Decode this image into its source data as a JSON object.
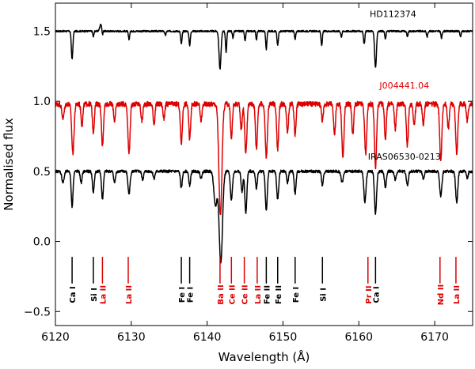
{
  "chart_data": {
    "type": "line",
    "xlabel": "Wavelength (Å)",
    "ylabel": "Normalised flux",
    "xlim": [
      6120,
      6175
    ],
    "ylim": [
      -0.6,
      1.7
    ],
    "xticks": [
      6120,
      6130,
      6140,
      6150,
      6160,
      6170
    ],
    "yticks": [
      -0.5,
      0.0,
      0.5,
      1.0,
      1.5
    ],
    "ytick_labels": [
      "−0.5",
      "0.0",
      "0.5",
      "1.0",
      "1.5"
    ],
    "grid": false,
    "series": [
      {
        "name": "HD112374",
        "color": "#000000",
        "continuum": 1.5,
        "noise": 0.006,
        "label_x": 6164.5,
        "label_y": 1.6,
        "emission": [
          [
            6126.0,
            0.05,
            0.15
          ]
        ],
        "lines": [
          [
            6122.2,
            0.2,
            0.1
          ],
          [
            6125.0,
            0.04,
            0.07
          ],
          [
            6126.2,
            0.04,
            0.07
          ],
          [
            6129.7,
            0.06,
            0.08
          ],
          [
            6134.5,
            0.03,
            0.08
          ],
          [
            6136.6,
            0.09,
            0.09
          ],
          [
            6137.7,
            0.1,
            0.09
          ],
          [
            6141.7,
            0.27,
            0.13
          ],
          [
            6142.5,
            0.15,
            0.08
          ],
          [
            6143.4,
            0.05,
            0.07
          ],
          [
            6145.0,
            0.07,
            0.08
          ],
          [
            6146.5,
            0.06,
            0.07
          ],
          [
            6147.8,
            0.13,
            0.08
          ],
          [
            6149.3,
            0.1,
            0.09
          ],
          [
            6151.6,
            0.06,
            0.08
          ],
          [
            6155.1,
            0.1,
            0.09
          ],
          [
            6157.7,
            0.04,
            0.08
          ],
          [
            6160.7,
            0.09,
            0.09
          ],
          [
            6162.2,
            0.26,
            0.12
          ],
          [
            6163.5,
            0.06,
            0.07
          ],
          [
            6166.4,
            0.04,
            0.08
          ],
          [
            6169.0,
            0.04,
            0.08
          ],
          [
            6170.9,
            0.05,
            0.08
          ],
          [
            6173.4,
            0.04,
            0.08
          ]
        ]
      },
      {
        "name": "J004441.04",
        "color": "#dd0000",
        "continuum": 0.98,
        "noise": 0.018,
        "label_x": 6166.0,
        "label_y": 1.09,
        "emission": [],
        "lines": [
          [
            6121.0,
            0.1,
            0.15
          ],
          [
            6122.3,
            0.35,
            0.15
          ],
          [
            6123.5,
            0.15,
            0.12
          ],
          [
            6125.0,
            0.2,
            0.12
          ],
          [
            6126.2,
            0.3,
            0.13
          ],
          [
            6127.8,
            0.12,
            0.12
          ],
          [
            6129.7,
            0.35,
            0.14
          ],
          [
            6131.4,
            0.12,
            0.12
          ],
          [
            6133.0,
            0.14,
            0.12
          ],
          [
            6134.3,
            0.1,
            0.12
          ],
          [
            6136.6,
            0.28,
            0.13
          ],
          [
            6137.7,
            0.25,
            0.12
          ],
          [
            6139.2,
            0.12,
            0.12
          ],
          [
            6141.75,
            0.8,
            0.2
          ],
          [
            6143.2,
            0.25,
            0.12
          ],
          [
            6144.5,
            0.18,
            0.12
          ],
          [
            6145.1,
            0.35,
            0.14
          ],
          [
            6146.5,
            0.32,
            0.13
          ],
          [
            6147.8,
            0.38,
            0.14
          ],
          [
            6149.3,
            0.32,
            0.13
          ],
          [
            6150.6,
            0.2,
            0.12
          ],
          [
            6151.6,
            0.22,
            0.12
          ],
          [
            6155.2,
            0.12,
            0.12
          ],
          [
            6156.8,
            0.22,
            0.12
          ],
          [
            6157.9,
            0.38,
            0.14
          ],
          [
            6159.2,
            0.22,
            0.12
          ],
          [
            6160.9,
            0.35,
            0.14
          ],
          [
            6162.2,
            0.45,
            0.14
          ],
          [
            6163.5,
            0.25,
            0.12
          ],
          [
            6164.8,
            0.18,
            0.12
          ],
          [
            6166.4,
            0.3,
            0.13
          ],
          [
            6167.3,
            0.15,
            0.12
          ],
          [
            6168.5,
            0.15,
            0.12
          ],
          [
            6170.8,
            0.4,
            0.14
          ],
          [
            6171.8,
            0.18,
            0.12
          ],
          [
            6172.9,
            0.35,
            0.14
          ],
          [
            6174.3,
            0.12,
            0.12
          ]
        ]
      },
      {
        "name": "IRAS06530-0213",
        "color": "#000000",
        "continuum": 0.5,
        "noise": 0.01,
        "label_x": 6166.0,
        "label_y": 0.585,
        "emission": [],
        "lines": [
          [
            6121.0,
            0.08,
            0.15
          ],
          [
            6122.2,
            0.25,
            0.12
          ],
          [
            6123.4,
            0.08,
            0.12
          ],
          [
            6125.0,
            0.15,
            0.12
          ],
          [
            6126.2,
            0.2,
            0.12
          ],
          [
            6127.8,
            0.08,
            0.12
          ],
          [
            6129.7,
            0.16,
            0.14
          ],
          [
            6131.5,
            0.06,
            0.12
          ],
          [
            6133.0,
            0.05,
            0.12
          ],
          [
            6136.6,
            0.12,
            0.12
          ],
          [
            6137.7,
            0.1,
            0.12
          ],
          [
            6139.2,
            0.05,
            0.12
          ],
          [
            6141.1,
            0.25,
            0.2
          ],
          [
            6141.8,
            0.65,
            0.22
          ],
          [
            6143.2,
            0.2,
            0.14
          ],
          [
            6144.6,
            0.15,
            0.12
          ],
          [
            6145.1,
            0.3,
            0.13
          ],
          [
            6146.5,
            0.12,
            0.12
          ],
          [
            6147.8,
            0.28,
            0.13
          ],
          [
            6149.3,
            0.2,
            0.13
          ],
          [
            6150.6,
            0.08,
            0.12
          ],
          [
            6151.6,
            0.16,
            0.12
          ],
          [
            6155.2,
            0.1,
            0.12
          ],
          [
            6157.8,
            0.08,
            0.14
          ],
          [
            6160.8,
            0.22,
            0.14
          ],
          [
            6162.2,
            0.3,
            0.14
          ],
          [
            6163.5,
            0.12,
            0.12
          ],
          [
            6164.8,
            0.06,
            0.12
          ],
          [
            6166.4,
            0.1,
            0.13
          ],
          [
            6168.5,
            0.05,
            0.12
          ],
          [
            6170.8,
            0.18,
            0.14
          ],
          [
            6172.9,
            0.22,
            0.14
          ],
          [
            6174.3,
            0.05,
            0.12
          ]
        ]
      }
    ],
    "line_markers": {
      "y_top": -0.11,
      "y_bottom": -0.3,
      "label_y": -0.38,
      "items": [
        {
          "x": 6122.2,
          "label": "Ca I",
          "color": "#000000"
        },
        {
          "x": 6125.0,
          "label": "Si I",
          "color": "#000000"
        },
        {
          "x": 6126.2,
          "label": "La II",
          "color": "#dd0000"
        },
        {
          "x": 6129.6,
          "label": "La II",
          "color": "#dd0000"
        },
        {
          "x": 6136.6,
          "label": "Fe I",
          "color": "#000000"
        },
        {
          "x": 6137.7,
          "label": "Fe I",
          "color": "#000000"
        },
        {
          "x": 6141.7,
          "label": "Ba II",
          "color": "#dd0000"
        },
        {
          "x": 6143.2,
          "label": "Ce II",
          "color": "#dd0000"
        },
        {
          "x": 6144.9,
          "label": "Ce II",
          "color": "#dd0000"
        },
        {
          "x": 6146.6,
          "label": "La II",
          "color": "#dd0000"
        },
        {
          "x": 6147.8,
          "label": "Fe II",
          "color": "#000000"
        },
        {
          "x": 6149.3,
          "label": "Fe II",
          "color": "#000000"
        },
        {
          "x": 6151.6,
          "label": "Fe I",
          "color": "#000000"
        },
        {
          "x": 6155.2,
          "label": "Si I",
          "color": "#000000"
        },
        {
          "x": 6161.2,
          "label": "Pr II",
          "color": "#dd0000"
        },
        {
          "x": 6162.2,
          "label": "Ca I",
          "color": "#000000"
        },
        {
          "x": 6170.7,
          "label": "Nd II",
          "color": "#dd0000"
        },
        {
          "x": 6172.8,
          "label": "La II",
          "color": "#dd0000"
        }
      ]
    }
  }
}
